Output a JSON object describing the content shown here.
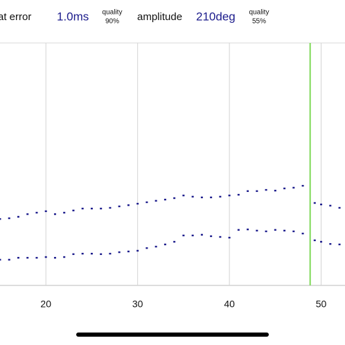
{
  "header": [
    {
      "label": "at error",
      "value": "1.0ms",
      "quality": "quality",
      "quality_value": "90%"
    },
    {
      "label": "amplitude",
      "value": "210deg",
      "quality": "quality",
      "quality_value": "55%"
    }
  ],
  "chart_data": {
    "type": "scatter",
    "x": [
      15,
      16,
      17,
      18,
      19,
      20,
      21,
      22,
      23,
      24,
      25,
      26,
      27,
      28,
      29,
      30,
      31,
      32,
      33,
      34,
      35,
      36,
      37,
      38,
      39,
      40,
      41,
      42,
      43,
      44,
      45,
      46,
      47,
      48,
      49.3,
      50,
      51,
      52
    ],
    "series": [
      {
        "color": "#1c1c8c",
        "values": [
          27.4,
          27.7,
          28.3,
          29.4,
          30.0,
          30.6,
          29.4,
          30.0,
          30.9,
          31.7,
          31.7,
          31.7,
          32.0,
          32.6,
          33.1,
          33.7,
          34.3,
          34.9,
          35.4,
          36.0,
          37.1,
          36.6,
          36.3,
          36.3,
          36.6,
          37.1,
          37.4,
          38.9,
          38.9,
          39.4,
          39.1,
          40.0,
          40.3,
          41.1,
          34.0,
          33.4,
          32.9,
          32.0
        ]
      },
      {
        "color": "#1c1c8c",
        "values": [
          10.6,
          10.6,
          11.4,
          11.4,
          11.4,
          11.7,
          11.4,
          11.7,
          12.9,
          13.1,
          13.1,
          12.9,
          13.1,
          13.7,
          14.0,
          14.3,
          15.4,
          16.0,
          16.9,
          18.0,
          20.6,
          20.6,
          20.9,
          20.3,
          20.0,
          19.7,
          22.9,
          23.1,
          22.6,
          22.3,
          22.9,
          22.6,
          22.3,
          21.4,
          18.6,
          18.0,
          17.1,
          16.9
        ]
      }
    ],
    "xlim": [
      15,
      52.6
    ],
    "ylim": [
      0,
      100
    ],
    "xticks": [
      20,
      30,
      40,
      50
    ],
    "grid": true,
    "marker_x": 48.8,
    "marker_color": "#7ed957"
  }
}
